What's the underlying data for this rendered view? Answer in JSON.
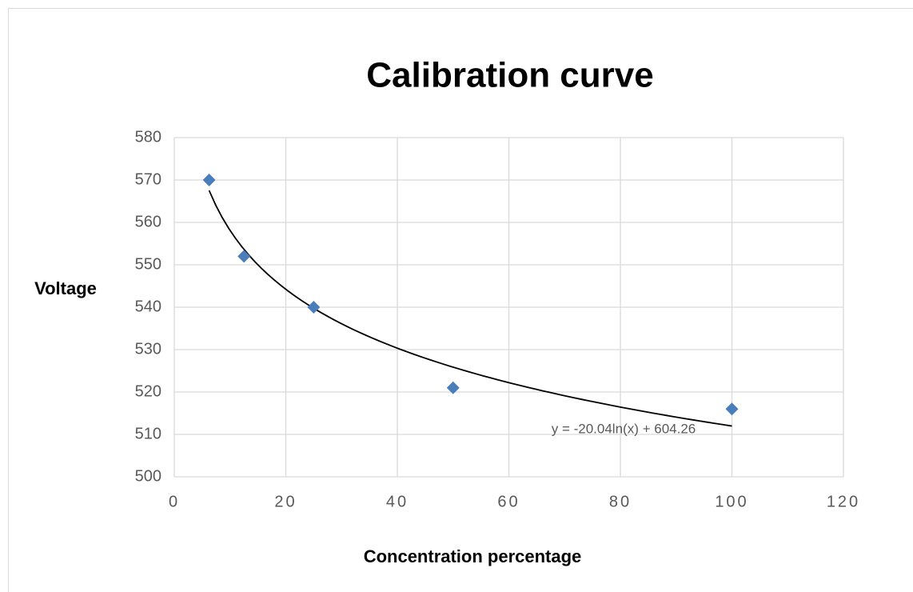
{
  "chart_data": {
    "type": "scatter",
    "title": "Calibration curve",
    "x_label": "Concentration percentage",
    "y_label": "Voltage",
    "x": [
      6.25,
      12.5,
      25,
      50,
      100
    ],
    "values": [
      570,
      552,
      540,
      521,
      516
    ],
    "color": "#4a7ebb",
    "xlim": [
      0,
      120
    ],
    "xticks": [
      0,
      20,
      40,
      60,
      80,
      100,
      120
    ],
    "ylim": [
      500,
      580
    ],
    "yticks": [
      500,
      510,
      520,
      530,
      540,
      550,
      560,
      570,
      580
    ],
    "grid": true,
    "trendline": {
      "kind": "log",
      "slope": -20.04,
      "intercept": 604.26,
      "label": "y = -20.04ln(x) + 604.26",
      "color": "#000000"
    }
  }
}
